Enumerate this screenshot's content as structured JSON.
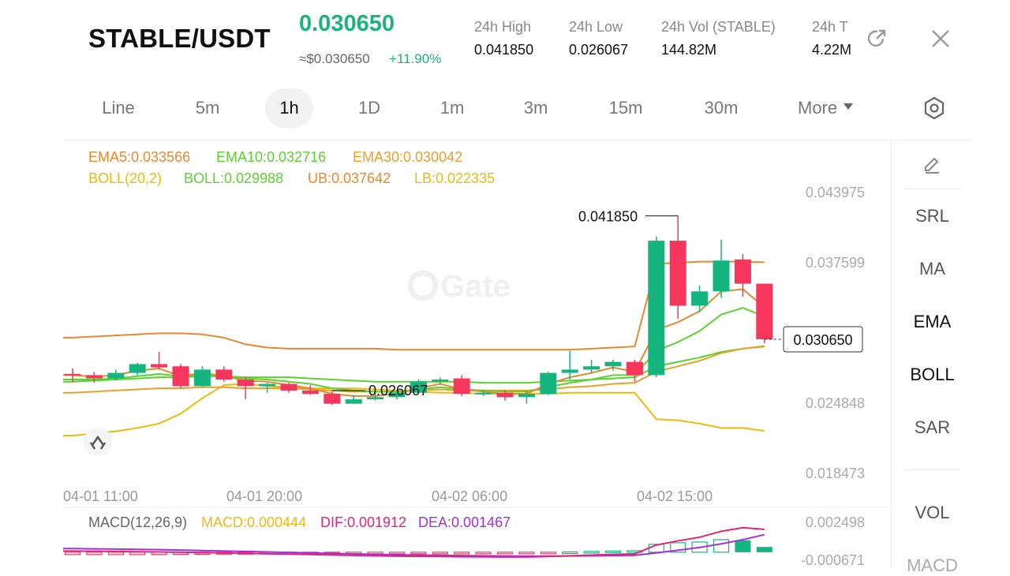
{
  "header": {
    "pair": "STABLE/USDT",
    "price": "0.030650",
    "usd_price": "≈$0.030650",
    "change": "+11.90%",
    "stats": [
      {
        "label": "24h   High",
        "value": "0.041850"
      },
      {
        "label": "24h   Low",
        "value": "0.026067"
      },
      {
        "label": "24h   Vol (STABLE)",
        "value": "144.82M"
      },
      {
        "label": "24h   T",
        "value": "4.22M"
      }
    ],
    "share_icon": "share-icon",
    "close_icon": "close-icon"
  },
  "intervals": {
    "tabs": [
      "Line",
      "5m",
      "1h",
      "1D",
      "1m",
      "3m",
      "15m",
      "30m"
    ],
    "active": "1h",
    "more_label": "More",
    "settings_icon": "settings-icon"
  },
  "legend": {
    "ema5": "EMA5:0.033566",
    "ema10": "EMA10:0.032716",
    "ema30": "EMA30:0.030042",
    "boll_params": "BOLL(20,2)",
    "boll": "BOLL:0.029988",
    "ub": "UB:0.037642",
    "lb": "LB:0.022335"
  },
  "macd_legend": {
    "params": "MACD(12,26,9)",
    "macd": "MACD:0.000444",
    "dif": "DIF:0.001912",
    "dea": "DEA:0.001467"
  },
  "toolbar": {
    "draw_icon": "pencil-icon",
    "items": [
      "SRL",
      "MA",
      "EMA",
      "BOLL",
      "SAR"
    ],
    "selected": [
      "EMA",
      "BOLL"
    ],
    "sub_items": [
      "VOL",
      "MACD"
    ]
  },
  "colors": {
    "up": "#16b57f",
    "down": "#f6365d",
    "ema5": "#e6892f",
    "ema10": "#5cd132",
    "ema30": "#e9a02b",
    "boll_ub_lb": "#f0b90b",
    "boll_mid": "#5cd132",
    "dif": "#e0257b",
    "dea": "#a330d4",
    "macd": "#f0b90b"
  },
  "chart_data": {
    "type": "candlestick",
    "watermark": "Gate",
    "yaxis_labels": [
      "0.043975",
      "0.037599",
      "0.024848",
      "0.018473"
    ],
    "ylim": [
      0.018473,
      0.043975
    ],
    "xaxis_labels": [
      "04-01 11:00",
      "04-01 20:00",
      "04-02 06:00",
      "04-02 15:00"
    ],
    "current_price_label": "0.030650",
    "high_marker": "0.041850",
    "low_marker": "0.026067",
    "candles": [
      {
        "o": 0.0275,
        "h": 0.028,
        "l": 0.0268,
        "c": 0.0274
      },
      {
        "o": 0.0274,
        "h": 0.0277,
        "l": 0.0267,
        "c": 0.0271
      },
      {
        "o": 0.0271,
        "h": 0.0279,
        "l": 0.0269,
        "c": 0.0276
      },
      {
        "o": 0.0276,
        "h": 0.0285,
        "l": 0.0274,
        "c": 0.0284
      },
      {
        "o": 0.0284,
        "h": 0.0295,
        "l": 0.0279,
        "c": 0.0281
      },
      {
        "o": 0.0282,
        "h": 0.0284,
        "l": 0.0262,
        "c": 0.0264
      },
      {
        "o": 0.0264,
        "h": 0.0282,
        "l": 0.0263,
        "c": 0.0279
      },
      {
        "o": 0.0279,
        "h": 0.0282,
        "l": 0.0268,
        "c": 0.027
      },
      {
        "o": 0.027,
        "h": 0.0272,
        "l": 0.0252,
        "c": 0.0264
      },
      {
        "o": 0.0264,
        "h": 0.0267,
        "l": 0.0258,
        "c": 0.0266
      },
      {
        "o": 0.0266,
        "h": 0.0267,
        "l": 0.0258,
        "c": 0.026
      },
      {
        "o": 0.026,
        "h": 0.0265,
        "l": 0.0256,
        "c": 0.0257
      },
      {
        "o": 0.0257,
        "h": 0.0259,
        "l": 0.0247,
        "c": 0.0248
      },
      {
        "o": 0.0248,
        "h": 0.0256,
        "l": 0.0248,
        "c": 0.0252
      },
      {
        "o": 0.0252,
        "h": 0.0258,
        "l": 0.0251,
        "c": 0.0254
      },
      {
        "o": 0.0254,
        "h": 0.026,
        "l": 0.0252,
        "c": 0.0258
      },
      {
        "o": 0.0258,
        "h": 0.027,
        "l": 0.0257,
        "c": 0.0268
      },
      {
        "o": 0.0268,
        "h": 0.0272,
        "l": 0.0265,
        "c": 0.027
      },
      {
        "o": 0.0271,
        "h": 0.0274,
        "l": 0.0255,
        "c": 0.0257
      },
      {
        "o": 0.0257,
        "h": 0.026,
        "l": 0.0255,
        "c": 0.0258
      },
      {
        "o": 0.0258,
        "h": 0.026,
        "l": 0.0251,
        "c": 0.0254
      },
      {
        "o": 0.0254,
        "h": 0.026,
        "l": 0.0248,
        "c": 0.0257
      },
      {
        "o": 0.0257,
        "h": 0.0277,
        "l": 0.0256,
        "c": 0.0276
      },
      {
        "o": 0.0276,
        "h": 0.0296,
        "l": 0.027,
        "c": 0.0279
      },
      {
        "o": 0.0279,
        "h": 0.0288,
        "l": 0.0276,
        "c": 0.0282
      },
      {
        "o": 0.0282,
        "h": 0.0288,
        "l": 0.0278,
        "c": 0.0286
      },
      {
        "o": 0.0286,
        "h": 0.0288,
        "l": 0.0268,
        "c": 0.0274
      },
      {
        "o": 0.0274,
        "h": 0.04,
        "l": 0.0272,
        "c": 0.0396
      },
      {
        "o": 0.0396,
        "h": 0.04185,
        "l": 0.0325,
        "c": 0.0337
      },
      {
        "o": 0.0337,
        "h": 0.0355,
        "l": 0.0331,
        "c": 0.035
      },
      {
        "o": 0.035,
        "h": 0.0397,
        "l": 0.0344,
        "c": 0.0378
      },
      {
        "o": 0.0379,
        "h": 0.0384,
        "l": 0.0345,
        "c": 0.0357
      },
      {
        "o": 0.0357,
        "h": 0.0357,
        "l": 0.0303,
        "c": 0.03065
      }
    ],
    "ema5": [
      0.0274,
      0.02725,
      0.0274,
      0.0278,
      0.028,
      0.0273,
      0.0276,
      0.0273,
      0.0269,
      0.0268,
      0.0265,
      0.0262,
      0.0257,
      0.0255,
      0.0255,
      0.0257,
      0.0262,
      0.0266,
      0.0261,
      0.0259,
      0.0257,
      0.0257,
      0.0266,
      0.0272,
      0.0276,
      0.0281,
      0.0277,
      0.0315,
      0.0322,
      0.0332,
      0.035,
      0.0352,
      0.03357
    ],
    "ema10": [
      0.027,
      0.027,
      0.0271,
      0.0273,
      0.0275,
      0.0273,
      0.0274,
      0.0273,
      0.0271,
      0.027,
      0.0268,
      0.0266,
      0.0262,
      0.026,
      0.0259,
      0.0259,
      0.0261,
      0.0263,
      0.0261,
      0.026,
      0.0259,
      0.0259,
      0.0263,
      0.0267,
      0.027,
      0.0274,
      0.0274,
      0.0296,
      0.0304,
      0.0314,
      0.0329,
      0.0335,
      0.03272
    ],
    "ema30": [
      0.0258,
      0.0259,
      0.026,
      0.0261,
      0.0262,
      0.0262,
      0.0263,
      0.0263,
      0.0262,
      0.0262,
      0.0262,
      0.0261,
      0.026,
      0.0259,
      0.0259,
      0.0259,
      0.026,
      0.0261,
      0.026,
      0.026,
      0.026,
      0.026,
      0.0261,
      0.0263,
      0.0264,
      0.0266,
      0.0267,
      0.0277,
      0.0282,
      0.0287,
      0.0294,
      0.0298,
      0.03004
    ],
    "boll_ub": [
      0.0308,
      0.0309,
      0.031,
      0.0311,
      0.0312,
      0.0312,
      0.0311,
      0.0308,
      0.0302,
      0.0299,
      0.0298,
      0.0298,
      0.0298,
      0.0298,
      0.0298,
      0.0297,
      0.0297,
      0.0297,
      0.0297,
      0.0297,
      0.0297,
      0.0297,
      0.0297,
      0.0297,
      0.0298,
      0.0299,
      0.03,
      0.0375,
      0.0376,
      0.0377,
      0.0377,
      0.0377,
      0.03764
    ],
    "boll_mid": [
      0.0268,
      0.0269,
      0.027,
      0.0271,
      0.0272,
      0.0272,
      0.0273,
      0.0273,
      0.0272,
      0.0272,
      0.0272,
      0.0271,
      0.027,
      0.0269,
      0.0268,
      0.0268,
      0.0268,
      0.0268,
      0.0268,
      0.0267,
      0.0267,
      0.0267,
      0.0268,
      0.0269,
      0.027,
      0.0271,
      0.0272,
      0.0282,
      0.0286,
      0.029,
      0.0295,
      0.0298,
      0.02999
    ],
    "boll_lb": [
      0.0219,
      0.0221,
      0.0223,
      0.0226,
      0.023,
      0.0239,
      0.0253,
      0.0265,
      0.0266,
      0.0264,
      0.0263,
      0.0262,
      0.0262,
      0.0262,
      0.0261,
      0.026,
      0.0259,
      0.0258,
      0.0258,
      0.0257,
      0.0257,
      0.0257,
      0.0257,
      0.0258,
      0.0258,
      0.0258,
      0.0258,
      0.0234,
      0.0233,
      0.023,
      0.0226,
      0.0226,
      0.02234
    ],
    "macd": {
      "ylim": [
        -0.000671,
        0.002498
      ],
      "yaxis_labels": [
        "0.002498",
        "-0.000671"
      ],
      "dif": [
        0.0001,
        8e-05,
        6e-05,
        4e-05,
        2e-05,
        0.0,
        -3e-05,
        -6e-05,
        -0.0001,
        -0.00013,
        -0.00016,
        -0.00019,
        -0.00023,
        -0.00027,
        -0.0003,
        -0.00033,
        -0.00035,
        -0.00036,
        -0.00038,
        -0.00039,
        -0.0004,
        -0.0004,
        -0.00036,
        -0.0003,
        -0.00024,
        -0.00018,
        -0.00014,
        0.0006,
        0.00095,
        0.00125,
        0.00175,
        0.00205,
        0.00191
      ],
      "dea": [
        0.0003,
        0.00028,
        0.00026,
        0.00024,
        0.00021,
        0.00018,
        0.00014,
        0.0001,
        6e-05,
        2e-05,
        -2e-05,
        -6e-05,
        -0.0001,
        -0.00014,
        -0.00018,
        -0.00021,
        -0.00024,
        -0.00026,
        -0.00028,
        -0.0003,
        -0.00032,
        -0.00033,
        -0.00033,
        -0.00032,
        -0.0003,
        -0.00028,
        -0.00026,
        -6e-05,
        0.00016,
        0.0004,
        0.0007,
        0.00105,
        0.00147
      ],
      "hist": [
        -0.0002,
        -0.0002,
        -0.0002,
        -0.0002,
        -0.00019,
        -0.00018,
        -0.00017,
        -0.00016,
        -0.00016,
        -0.00015,
        -0.00014,
        -0.00013,
        -0.00013,
        -0.00013,
        -0.00012,
        -0.00012,
        -0.00011,
        -0.0001,
        -0.0001,
        -9e-05,
        -8e-05,
        -7e-05,
        -3e-05,
        2e-05,
        6e-05,
        0.0001,
        0.00012,
        0.00066,
        0.00079,
        0.00085,
        0.00105,
        0.001,
        0.00044
      ]
    }
  }
}
